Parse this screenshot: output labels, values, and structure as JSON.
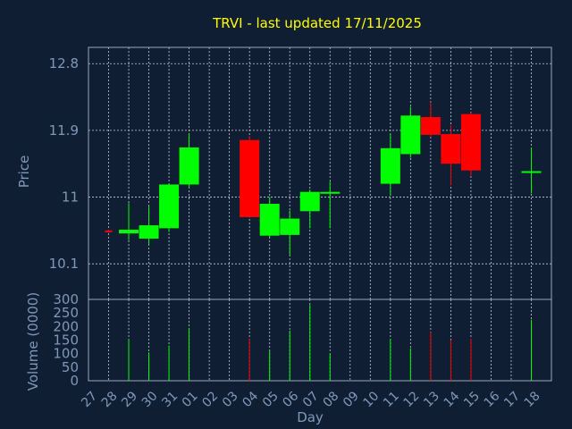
{
  "chart_data": {
    "type": "candlestick",
    "title": "TRVI - last updated 17/11/2025",
    "xlabel": "Day",
    "x_ticks": [
      "27",
      "28",
      "29",
      "30",
      "31",
      "01",
      "02",
      "03",
      "04",
      "05",
      "06",
      "07",
      "08",
      "09",
      "10",
      "11",
      "12",
      "13",
      "14",
      "15",
      "16",
      "17",
      "18"
    ],
    "price": {
      "ylabel": "Price",
      "ylim": [
        9.62,
        13.02
      ],
      "yticks": [
        10.1,
        11,
        11.9,
        12.8
      ],
      "ytick_labels": [
        "10.1",
        "11",
        "11.9",
        "12.8"
      ],
      "grid": true
    },
    "volume": {
      "ylabel": "Volume (0000)",
      "ylim": [
        0,
        300
      ],
      "yticks": [
        0,
        50,
        100,
        150,
        200,
        250,
        300
      ],
      "ytick_labels": [
        "0",
        "50",
        "100",
        "150",
        "200",
        "250",
        "300"
      ]
    },
    "colors": {
      "up": "#00ff00",
      "down": "#ff0000",
      "title": "#ffff00",
      "axis_text": "#7f98b8",
      "background": "#0f1e33"
    },
    "candles": [
      {
        "day": "27",
        "open": 10.55,
        "high": 10.56,
        "low": 10.54,
        "close": 10.54,
        "volume": 0
      },
      {
        "day": "28",
        "open": 10.51,
        "high": 10.92,
        "low": 10.42,
        "close": 10.56,
        "volume": 155
      },
      {
        "day": "29",
        "open": 10.44,
        "high": 10.88,
        "low": 10.36,
        "close": 10.62,
        "volume": 105
      },
      {
        "day": "30",
        "open": 10.58,
        "high": 11.17,
        "low": 10.53,
        "close": 11.17,
        "volume": 130
      },
      {
        "day": "31",
        "open": 11.17,
        "high": 11.85,
        "low": 11.12,
        "close": 11.67,
        "volume": 195
      },
      {
        "day": "03",
        "open": 11.77,
        "high": 11.82,
        "low": 10.72,
        "close": 10.73,
        "volume": 155
      },
      {
        "day": "04",
        "open": 10.48,
        "high": 11.0,
        "low": 10.46,
        "close": 10.91,
        "volume": 110
      },
      {
        "day": "05",
        "open": 10.49,
        "high": 10.82,
        "low": 10.22,
        "close": 10.71,
        "volume": 185
      },
      {
        "day": "06",
        "open": 10.81,
        "high": 11.1,
        "low": 10.58,
        "close": 11.07,
        "volume": 280
      },
      {
        "day": "07",
        "open": 11.06,
        "high": 11.21,
        "low": 10.58,
        "close": 11.07,
        "volume": 100
      },
      {
        "day": "10",
        "open": 11.18,
        "high": 11.85,
        "low": 11.02,
        "close": 11.66,
        "volume": 155
      },
      {
        "day": "11",
        "open": 11.58,
        "high": 12.22,
        "low": 11.53,
        "close": 12.1,
        "volume": 120
      },
      {
        "day": "12",
        "open": 12.08,
        "high": 12.28,
        "low": 11.81,
        "close": 11.84,
        "volume": 180
      },
      {
        "day": "13",
        "open": 11.85,
        "high": 11.97,
        "low": 11.16,
        "close": 11.45,
        "volume": 150
      },
      {
        "day": "14",
        "open": 12.12,
        "high": 12.14,
        "low": 11.29,
        "close": 11.36,
        "volume": 155
      },
      {
        "day": "17",
        "open": 11.34,
        "high": 11.67,
        "low": 11.05,
        "close": 11.35,
        "volume": 225
      }
    ]
  }
}
